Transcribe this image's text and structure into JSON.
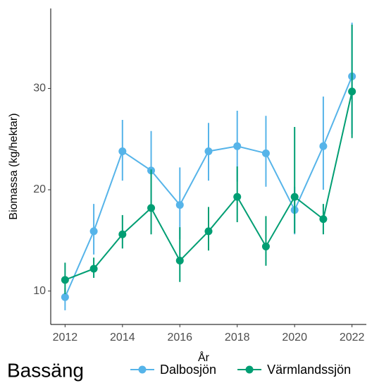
{
  "chart_data": {
    "type": "line",
    "x": [
      2012,
      2013,
      2014,
      2015,
      2016,
      2017,
      2018,
      2019,
      2020,
      2021,
      2022
    ],
    "xlabel": "År",
    "ylabel": "Biomassa (kg/hektar)",
    "xlim": [
      2011.5,
      2022.5
    ],
    "xticks": [
      2012,
      2014,
      2016,
      2018,
      2020,
      2022
    ],
    "ylim": [
      6.7,
      37.9
    ],
    "yticks": [
      10,
      20,
      30
    ],
    "grid": false,
    "legend_title": "Bassäng",
    "legend_position": "bottom",
    "series": [
      {
        "name": "Dalbosjön",
        "color": "#56B4E9",
        "values": [
          9.4,
          15.9,
          23.8,
          21.9,
          18.5,
          23.8,
          24.3,
          23.6,
          18.0,
          24.3,
          31.2
        ],
        "lower": [
          8.1,
          13.6,
          20.9,
          17.9,
          15.1,
          20.9,
          20.8,
          20.3,
          15.6,
          20.0,
          25.5
        ],
        "upper": [
          10.3,
          18.6,
          26.9,
          25.8,
          22.2,
          26.6,
          27.8,
          27.3,
          20.3,
          29.2,
          36.5
        ]
      },
      {
        "name": "Värmlandssjön",
        "color": "#009E73",
        "values": [
          11.1,
          12.2,
          15.6,
          18.2,
          13.0,
          15.9,
          19.3,
          14.4,
          19.3,
          17.1,
          29.7
        ],
        "lower": [
          9.7,
          11.3,
          14.2,
          15.6,
          10.9,
          14.0,
          16.8,
          12.5,
          15.7,
          15.6,
          25.1
        ],
        "upper": [
          12.8,
          13.3,
          17.5,
          22.0,
          16.3,
          18.3,
          22.3,
          17.4,
          26.2,
          18.6,
          36.3
        ]
      }
    ]
  }
}
